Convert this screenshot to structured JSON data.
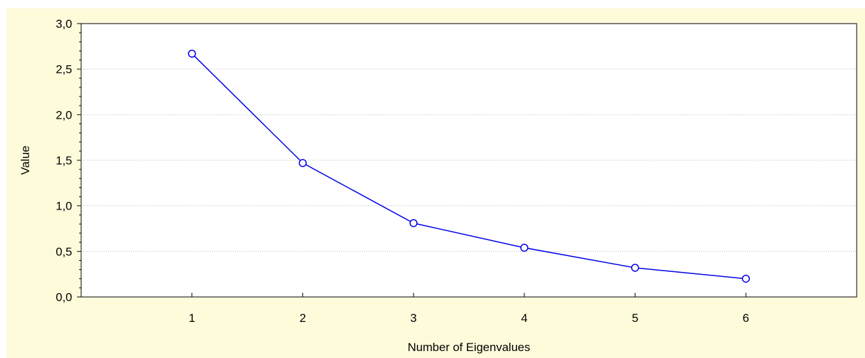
{
  "colors": {
    "background": "#fefbdb",
    "plot_area": "#ffffff",
    "series_line": "#0000e6",
    "marker_fill": "#ffffff",
    "gridline": "#b8b8b8",
    "axis": "#000000"
  },
  "chart_data": {
    "type": "line",
    "title": "",
    "xlabel": "Number of Eigenvalues",
    "ylabel": "Value",
    "x": [
      1,
      2,
      3,
      4,
      5,
      6
    ],
    "x_ticks": [
      "1",
      "2",
      "3",
      "4",
      "5",
      "6"
    ],
    "xlim": [
      0,
      7
    ],
    "ylim": [
      0,
      3
    ],
    "y_ticks": [
      "0,0",
      "0,5",
      "1,0",
      "1,5",
      "2,0",
      "2,5",
      "3,0"
    ],
    "y_tick_values": [
      0,
      0.5,
      1,
      1.5,
      2,
      2.5,
      3
    ],
    "grid": "horizontal dotted",
    "legend": "none",
    "marker": "open circle",
    "series": [
      {
        "values": [
          2.67,
          1.47,
          0.81,
          0.54,
          0.32,
          0.2
        ]
      }
    ]
  }
}
